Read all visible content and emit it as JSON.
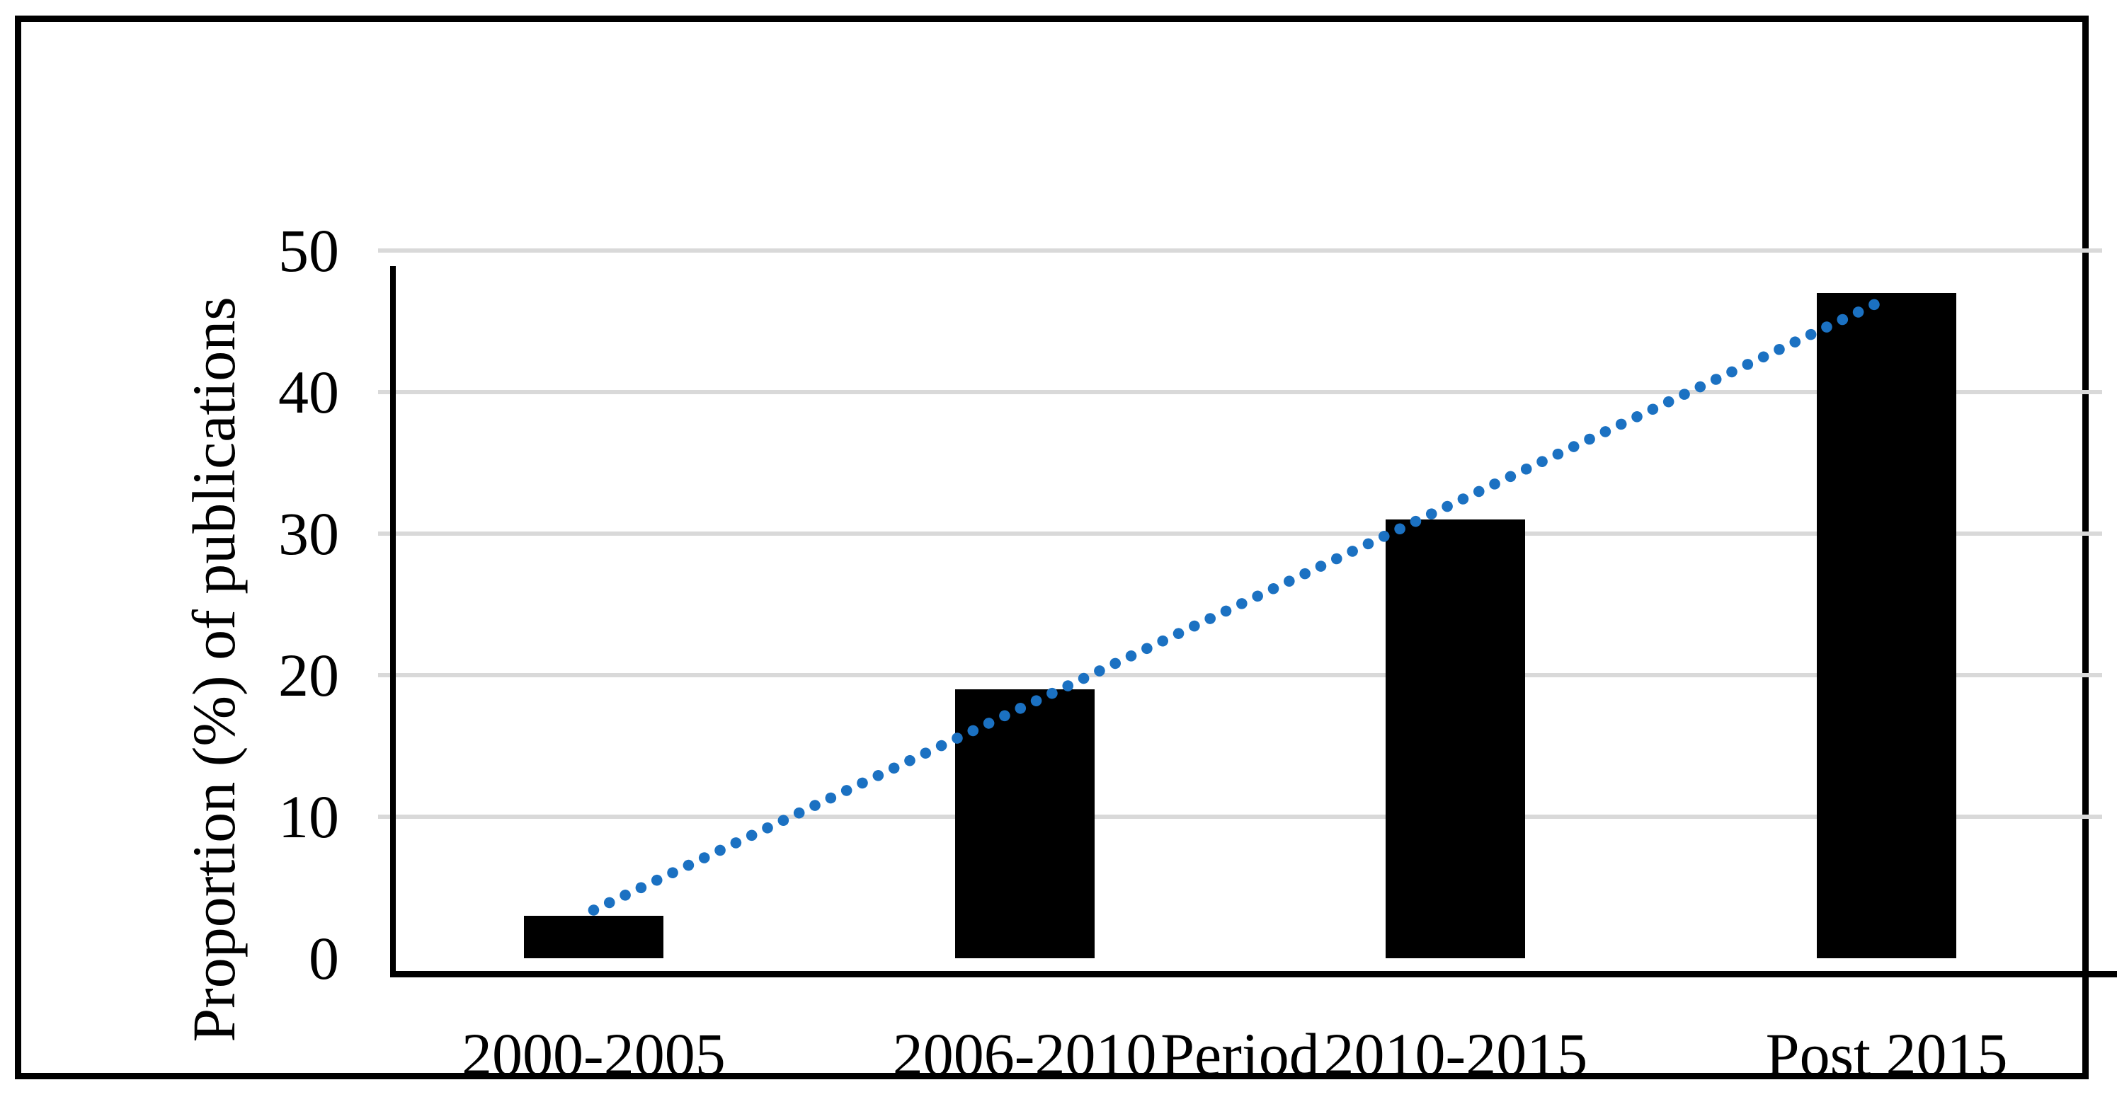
{
  "figure": {
    "background_color": "#FFFFFF",
    "frame_color": "#000000"
  },
  "chart_data": {
    "type": "bar",
    "categories": [
      "2000-2005",
      "2006-2010",
      "2010-2015",
      "Post 2015"
    ],
    "values": [
      3,
      19,
      31,
      47
    ],
    "title": "",
    "xlabel": "Period",
    "ylabel": "Proportion (%) of publications",
    "ylim": [
      0,
      50
    ],
    "yticks": [
      0,
      10,
      20,
      30,
      40,
      50
    ],
    "ytick_labels": [
      "0",
      "10",
      "20",
      "30",
      "40",
      "50"
    ],
    "grid": true,
    "gridline_color": "#D9D9D9",
    "bar_color": "#000000",
    "axis_color": "#000000",
    "legend": "none",
    "trendline": {
      "type": "linear",
      "style": "dotted",
      "color": "#1B71C2",
      "fit_of_series": "values"
    }
  }
}
